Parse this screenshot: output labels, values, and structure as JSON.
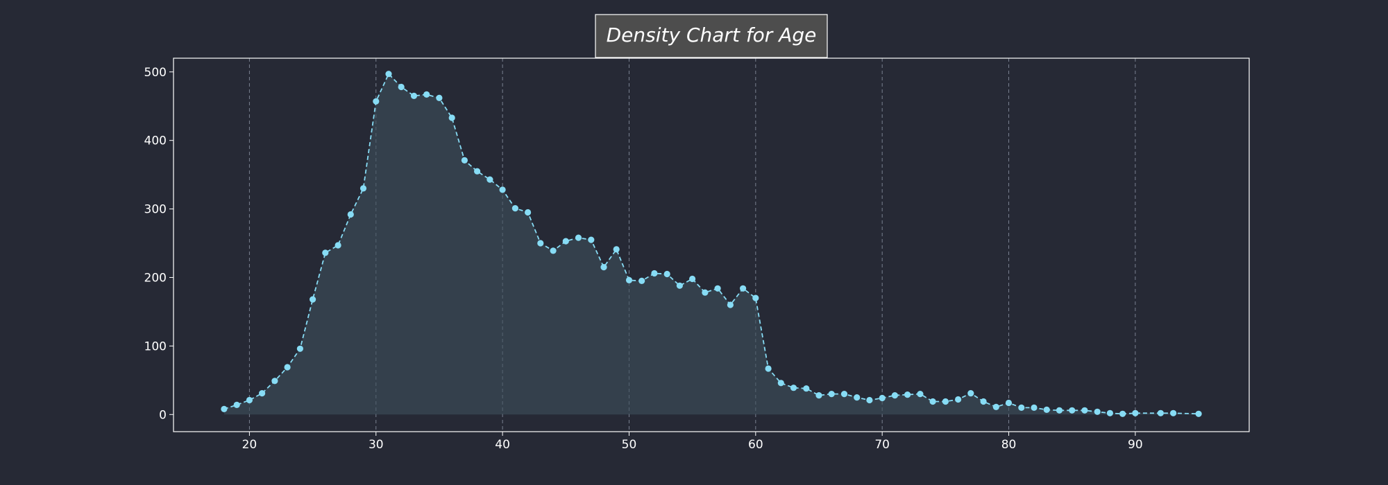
{
  "colors": {
    "background": "#262935",
    "line": "#87dcf5",
    "fill": "#3e505c",
    "grid": "#8f98a8",
    "axes": "#ffffff",
    "title_box": "#4d4d4d"
  },
  "chart_data": {
    "type": "area",
    "title": "Density Chart for Age",
    "xlabel": "",
    "ylabel": "",
    "xlim": [
      14,
      99
    ],
    "ylim": [
      -25,
      520
    ],
    "x_ticks": [
      20,
      30,
      40,
      50,
      60,
      70,
      80,
      90
    ],
    "y_ticks": [
      0,
      100,
      200,
      300,
      400,
      500
    ],
    "grid": "x",
    "line_style": "dashed",
    "marker": "circle",
    "x": [
      18,
      19,
      20,
      21,
      22,
      23,
      24,
      25,
      26,
      27,
      28,
      29,
      30,
      31,
      32,
      33,
      34,
      35,
      36,
      37,
      38,
      39,
      40,
      41,
      42,
      43,
      44,
      45,
      46,
      47,
      48,
      49,
      50,
      51,
      52,
      53,
      54,
      55,
      56,
      57,
      58,
      59,
      60,
      61,
      62,
      63,
      64,
      65,
      66,
      67,
      68,
      69,
      70,
      71,
      72,
      73,
      74,
      75,
      76,
      77,
      78,
      79,
      80,
      81,
      82,
      83,
      84,
      85,
      86,
      87,
      88,
      89,
      90,
      92,
      93,
      95
    ],
    "y": [
      8,
      14,
      21,
      31,
      49,
      69,
      96,
      168,
      236,
      247,
      292,
      330,
      457,
      497,
      478,
      465,
      467,
      462,
      433,
      371,
      355,
      343,
      328,
      301,
      295,
      250,
      239,
      253,
      258,
      255,
      215,
      241,
      196,
      195,
      206,
      205,
      188,
      198,
      178,
      184,
      160,
      184,
      170,
      67,
      46,
      39,
      38,
      28,
      30,
      30,
      25,
      21,
      24,
      28,
      29,
      30,
      19,
      19,
      22,
      31,
      19,
      11,
      17,
      10,
      10,
      7,
      6,
      6,
      6,
      4,
      2,
      1,
      2,
      2,
      2,
      1
    ]
  }
}
